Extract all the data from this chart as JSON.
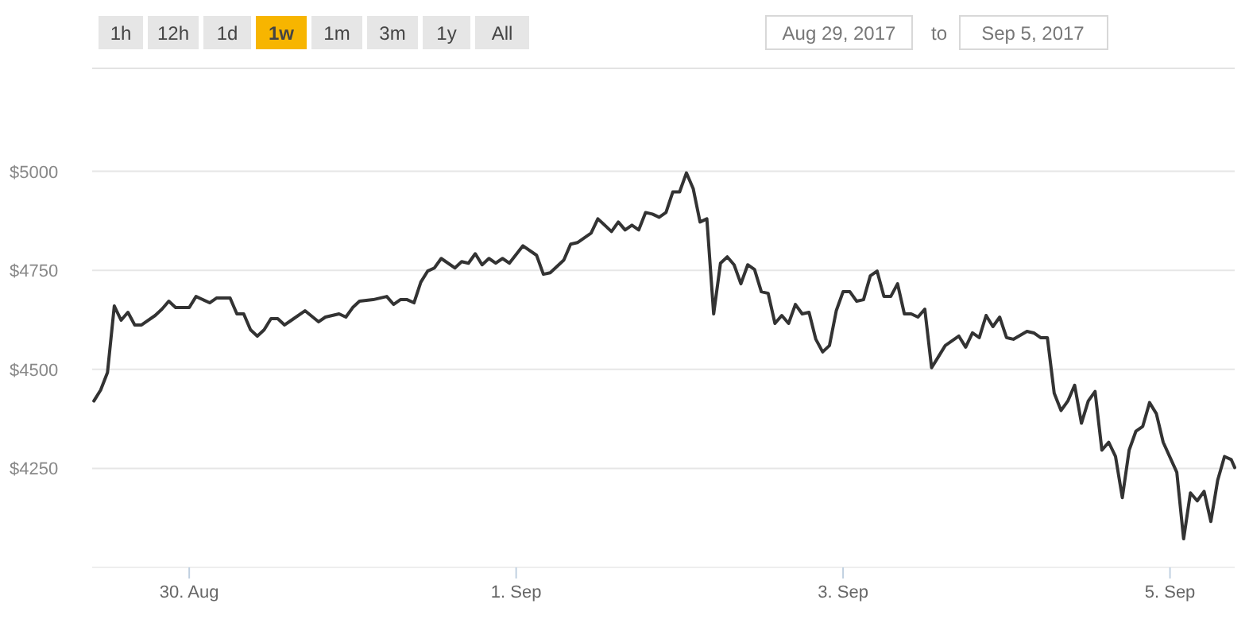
{
  "chart_data": {
    "type": "line",
    "x": [
      "2017-08-29T10:00",
      "2017-08-29T11:00",
      "2017-08-29T12:00",
      "2017-08-29T13:00",
      "2017-08-29T14:00",
      "2017-08-29T15:00",
      "2017-08-29T16:00",
      "2017-08-29T17:00",
      "2017-08-29T19:00",
      "2017-08-29T20:00",
      "2017-08-29T21:00",
      "2017-08-29T22:00",
      "2017-08-30T00:00",
      "2017-08-30T01:00",
      "2017-08-30T03:00",
      "2017-08-30T04:00",
      "2017-08-30T06:00",
      "2017-08-30T07:00",
      "2017-08-30T08:00",
      "2017-08-30T09:00",
      "2017-08-30T10:00",
      "2017-08-30T11:00",
      "2017-08-30T12:00",
      "2017-08-30T13:00",
      "2017-08-30T14:00",
      "2017-08-30T15:00",
      "2017-08-30T17:00",
      "2017-08-30T19:00",
      "2017-08-30T20:00",
      "2017-08-30T22:00",
      "2017-08-30T23:00",
      "2017-08-31T00:00",
      "2017-08-31T01:00",
      "2017-08-31T03:00",
      "2017-08-31T05:00",
      "2017-08-31T06:00",
      "2017-08-31T07:00",
      "2017-08-31T08:00",
      "2017-08-31T09:00",
      "2017-08-31T10:00",
      "2017-08-31T11:00",
      "2017-08-31T12:00",
      "2017-08-31T13:00",
      "2017-08-31T15:00",
      "2017-08-31T16:00",
      "2017-08-31T17:00",
      "2017-08-31T18:00",
      "2017-08-31T19:00",
      "2017-08-31T20:00",
      "2017-08-31T21:00",
      "2017-08-31T22:00",
      "2017-08-31T23:00",
      "2017-09-01T01:00",
      "2017-09-01T03:00",
      "2017-09-01T04:00",
      "2017-09-01T05:00",
      "2017-09-01T07:00",
      "2017-09-01T08:00",
      "2017-09-01T09:00",
      "2017-09-01T11:00",
      "2017-09-01T12:00",
      "2017-09-01T14:00",
      "2017-09-01T15:00",
      "2017-09-01T16:00",
      "2017-09-01T17:00",
      "2017-09-01T18:00",
      "2017-09-01T19:00",
      "2017-09-01T20:00",
      "2017-09-01T21:00",
      "2017-09-01T22:00",
      "2017-09-01T23:00",
      "2017-09-02T00:00",
      "2017-09-02T01:00",
      "2017-09-02T02:00",
      "2017-09-02T03:00",
      "2017-09-02T04:00",
      "2017-09-02T05:00",
      "2017-09-02T06:00",
      "2017-09-02T07:00",
      "2017-09-02T08:00",
      "2017-09-02T09:00",
      "2017-09-02T10:00",
      "2017-09-02T11:00",
      "2017-09-02T12:00",
      "2017-09-02T13:00",
      "2017-09-02T14:00",
      "2017-09-02T15:00",
      "2017-09-02T16:00",
      "2017-09-02T17:00",
      "2017-09-02T18:00",
      "2017-09-02T19:00",
      "2017-09-02T20:00",
      "2017-09-02T21:00",
      "2017-09-02T22:00",
      "2017-09-02T23:00",
      "2017-09-03T00:00",
      "2017-09-03T01:00",
      "2017-09-03T02:00",
      "2017-09-03T03:00",
      "2017-09-03T04:00",
      "2017-09-03T05:00",
      "2017-09-03T06:00",
      "2017-09-03T07:00",
      "2017-09-03T08:00",
      "2017-09-03T09:00",
      "2017-09-03T10:00",
      "2017-09-03T11:00",
      "2017-09-03T12:00",
      "2017-09-03T13:00",
      "2017-09-03T14:00",
      "2017-09-03T15:00",
      "2017-09-03T17:00",
      "2017-09-03T18:00",
      "2017-09-03T19:00",
      "2017-09-03T20:00",
      "2017-09-03T21:00",
      "2017-09-03T22:00",
      "2017-09-03T23:00",
      "2017-09-04T00:00",
      "2017-09-04T01:00",
      "2017-09-04T03:00",
      "2017-09-04T04:00",
      "2017-09-04T05:00",
      "2017-09-04T06:00",
      "2017-09-04T07:00",
      "2017-09-04T08:00",
      "2017-09-04T09:00",
      "2017-09-04T10:00",
      "2017-09-04T11:00",
      "2017-09-04T12:00",
      "2017-09-04T13:00",
      "2017-09-04T14:00",
      "2017-09-04T15:00",
      "2017-09-04T16:00",
      "2017-09-04T17:00",
      "2017-09-04T18:00",
      "2017-09-04T19:00",
      "2017-09-04T20:00",
      "2017-09-04T21:00",
      "2017-09-04T22:00",
      "2017-09-04T23:00",
      "2017-09-05T01:00",
      "2017-09-05T02:00",
      "2017-09-05T03:00",
      "2017-09-05T04:00",
      "2017-09-05T05:00",
      "2017-09-05T06:00",
      "2017-09-05T07:00",
      "2017-09-05T08:00",
      "2017-09-05T09:00",
      "2017-09-05T09:30"
    ],
    "series": [
      {
        "color": "#333333",
        "values": [
          4420,
          4448,
          4492,
          4660,
          4624,
          4644,
          4612,
          4612,
          4636,
          4652,
          4672,
          4656,
          4656,
          4684,
          4668,
          4680,
          4680,
          4640,
          4640,
          4600,
          4584,
          4600,
          4628,
          4628,
          4612,
          4624,
          4648,
          4620,
          4632,
          4640,
          4632,
          4656,
          4672,
          4676,
          4684,
          4664,
          4676,
          4676,
          4668,
          4720,
          4748,
          4756,
          4780,
          4756,
          4772,
          4768,
          4792,
          4764,
          4780,
          4768,
          4780,
          4768,
          4812,
          4788,
          4740,
          4744,
          4776,
          4816,
          4820,
          4844,
          4880,
          4848,
          4872,
          4852,
          4864,
          4852,
          4896,
          4892,
          4884,
          4896,
          4948,
          4948,
          4996,
          4956,
          4872,
          4880,
          4640,
          4768,
          4784,
          4764,
          4716,
          4764,
          4752,
          4696,
          4692,
          4616,
          4636,
          4616,
          4664,
          4640,
          4644,
          4576,
          4544,
          4560,
          4648,
          4696,
          4696,
          4672,
          4676,
          4736,
          4748,
          4684,
          4684,
          4716,
          4640,
          4640,
          4632,
          4652,
          4504,
          4532,
          4560,
          4584,
          4556,
          4592,
          4580,
          4636,
          4608,
          4632,
          4580,
          4576,
          4596,
          4592,
          4580,
          4580,
          4440,
          4396,
          4420,
          4460,
          4364,
          4420,
          4444,
          4296,
          4316,
          4280,
          4176,
          4296,
          4344,
          4356,
          4416,
          4388,
          4316,
          4240,
          4072,
          4188,
          4168,
          4192,
          4116,
          4220,
          4280,
          4272,
          4252
        ]
      }
    ],
    "xlim": [
      "2017-08-29T09:45",
      "2017-09-05T09:30"
    ],
    "xticks": [
      {
        "value": "2017-08-30",
        "label": "30. Aug"
      },
      {
        "value": "2017-09-01",
        "label": "1. Sep"
      },
      {
        "value": "2017-09-03",
        "label": "3. Sep"
      },
      {
        "value": "2017-09-05",
        "label": "5. Sep"
      }
    ],
    "ylim": [
      4000,
      5260
    ],
    "yticks": [
      {
        "value": 4250,
        "label": "$4250"
      },
      {
        "value": 4500,
        "label": "$4500"
      },
      {
        "value": 4750,
        "label": "$4750"
      },
      {
        "value": 5000,
        "label": "$5000"
      }
    ],
    "grid": "y",
    "marker": "none",
    "line_style": "solid",
    "annotations": [
      "1h",
      "12h",
      "1d",
      "1w",
      "1m",
      "3m",
      "1y",
      "All",
      "Aug 29, 2017",
      "to",
      "Sep 5, 2017"
    ]
  }
}
